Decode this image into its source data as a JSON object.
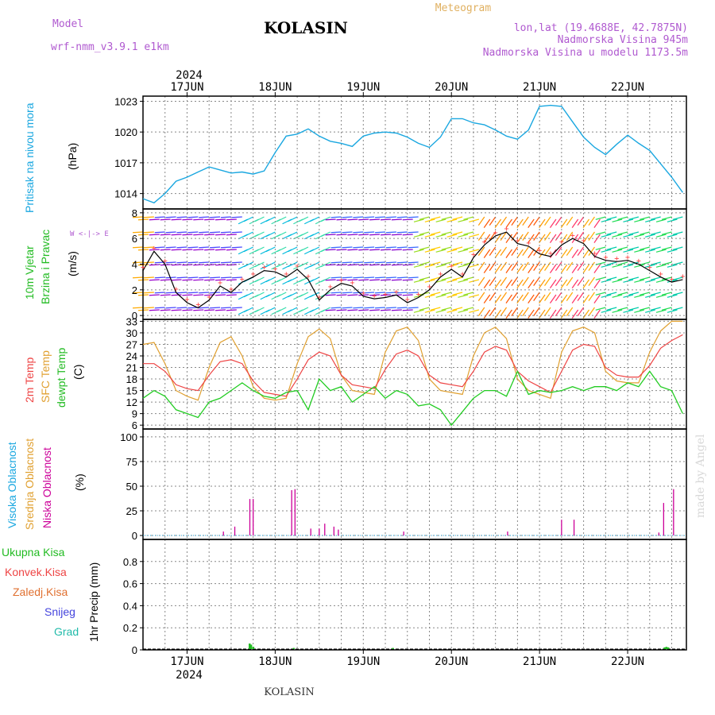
{
  "header": {
    "model_label": "Model",
    "model_name": "wrf-nmm_v3.9.1 e1km",
    "title": "KOLASIN",
    "meteogram_label": "Meteogram",
    "coords": "lon,lat (19.4688E, 42.7875N)",
    "altitude": "Nadmorska Visina 945m",
    "model_altitude": "Nadmorska Visina u modelu 1173.5m",
    "year_top": "2024",
    "year_bottom": "2024",
    "footer": "KOLASIN",
    "watermark": "made by Angel"
  },
  "colors": {
    "pressure": "#1aa7e0",
    "wind_speed": "#000000",
    "wind_gust": "#ff4444",
    "t2m": "#ee4444",
    "sfc": "#e0a030",
    "dewpt": "#22cc22",
    "high_cloud": "#1aa7e0",
    "mid_cloud": "#e0a030",
    "low_cloud": "#cc0099",
    "precip": "#22bb22"
  },
  "chart_data": [
    {
      "type": "line",
      "name": "pressure",
      "ylabel_main": "Pritisak na nivou mora",
      "unit": "(hPa)",
      "ylim": [
        1012.5,
        1023.5
      ],
      "yticks": [
        1014,
        1017,
        1020,
        1023
      ],
      "dates": [
        "17JUN",
        "18JUN",
        "19JUN",
        "20JUN",
        "21JUN",
        "22JUN"
      ],
      "series": [
        {
          "x": [
            0,
            3,
            6,
            9,
            12,
            15,
            18,
            21,
            24,
            27,
            30,
            33,
            36,
            39,
            42,
            45,
            48,
            51,
            54,
            57,
            60,
            63,
            66,
            69,
            72,
            75,
            78,
            81,
            84,
            87,
            90,
            93,
            96,
            99,
            102,
            105,
            108,
            111,
            114,
            117,
            120,
            123,
            126,
            129,
            132,
            135,
            138,
            141,
            144,
            147
          ],
          "values": [
            1013.5,
            1013.1,
            1014.0,
            1015.2,
            1015.6,
            1016.1,
            1016.6,
            1016.3,
            1016.0,
            1016.1,
            1015.9,
            1016.2,
            1018.0,
            1019.6,
            1019.8,
            1020.3,
            1019.6,
            1019.1,
            1018.9,
            1018.6,
            1019.6,
            1019.9,
            1020.0,
            1019.9,
            1019.5,
            1018.9,
            1018.5,
            1019.5,
            1021.3,
            1021.3,
            1020.9,
            1020.7,
            1020.2,
            1019.6,
            1019.3,
            1020.2,
            1022.5,
            1022.6,
            1022.5,
            1021.0,
            1019.5,
            1018.5,
            1017.8,
            1018.8,
            1019.7,
            1018.9,
            1018.2,
            1016.9,
            1015.6,
            1014.1
          ]
        }
      ]
    },
    {
      "type": "line",
      "name": "wind",
      "ylabel_main": "10m Vjetar",
      "ylabel_sub": "Brzina i Pravac",
      "unit": "(m/s)",
      "compass": "W <-|-> E",
      "ylim": [
        -0.3,
        8.3
      ],
      "yticks": [
        0,
        2,
        4,
        6,
        8
      ],
      "series": [
        {
          "name": "speed",
          "x": [
            0,
            3,
            6,
            9,
            12,
            15,
            18,
            21,
            24,
            27,
            30,
            33,
            36,
            39,
            42,
            45,
            48,
            51,
            54,
            57,
            60,
            63,
            66,
            69,
            72,
            75,
            78,
            81,
            84,
            87,
            90,
            93,
            96,
            99,
            102,
            105,
            108,
            111,
            114,
            117,
            120,
            123,
            126,
            129,
            132,
            135,
            138,
            141,
            144,
            147
          ],
          "values": [
            3.5,
            5.0,
            4.0,
            1.8,
            1.0,
            0.6,
            1.2,
            2.3,
            1.8,
            2.6,
            3.0,
            3.5,
            3.4,
            3.0,
            3.6,
            2.8,
            1.2,
            2.0,
            2.5,
            2.3,
            1.5,
            1.3,
            1.4,
            1.6,
            1.0,
            1.4,
            2.0,
            3.0,
            3.6,
            3.0,
            4.5,
            5.5,
            6.2,
            6.5,
            5.6,
            5.4,
            4.8,
            4.6,
            5.5,
            6.0,
            5.6,
            4.6,
            4.3,
            4.2,
            4.3,
            4.0,
            3.5,
            3.0,
            2.6,
            2.8
          ]
        }
      ]
    },
    {
      "type": "line",
      "name": "temperature",
      "legend": [
        "2m Temp",
        "SFC Temp",
        "dewpt Temp"
      ],
      "unit": "(C)",
      "ylim": [
        5,
        33.5
      ],
      "yticks": [
        6,
        9,
        12,
        15,
        18,
        21,
        24,
        27,
        30,
        33
      ],
      "series": [
        {
          "name": "2m Temp",
          "x": [
            0,
            3,
            6,
            9,
            12,
            15,
            18,
            21,
            24,
            27,
            30,
            33,
            36,
            39,
            42,
            45,
            48,
            51,
            54,
            57,
            60,
            63,
            66,
            69,
            72,
            75,
            78,
            81,
            84,
            87,
            90,
            93,
            96,
            99,
            102,
            105,
            108,
            111,
            114,
            117,
            120,
            123,
            126,
            129,
            132,
            135,
            138,
            141,
            144,
            147
          ],
          "values": [
            22,
            22,
            20,
            16.5,
            15.5,
            15,
            19,
            22.5,
            23,
            22,
            17.5,
            14.5,
            14,
            13.5,
            18,
            23,
            25,
            24,
            19,
            16.5,
            16,
            15.5,
            20.5,
            24.5,
            25.5,
            24,
            19,
            17,
            16.5,
            16,
            20,
            25,
            26.5,
            25.5,
            20,
            17.5,
            16,
            14.5,
            20,
            25.5,
            27,
            26.5,
            21,
            19,
            18.5,
            18.5,
            21.5,
            26,
            28,
            29.5
          ]
        },
        {
          "name": "SFC Temp",
          "x": [
            0,
            3,
            6,
            9,
            12,
            15,
            18,
            21,
            24,
            27,
            30,
            33,
            36,
            39,
            42,
            45,
            48,
            51,
            54,
            57,
            60,
            63,
            66,
            69,
            72,
            75,
            78,
            81,
            84,
            87,
            90,
            93,
            96,
            99,
            102,
            105,
            108,
            111,
            114,
            117,
            120,
            123,
            126,
            129,
            132,
            135,
            138,
            141,
            144,
            147
          ],
          "values": [
            27,
            27.5,
            22,
            15,
            13.5,
            12.5,
            21,
            27.5,
            29,
            24,
            16,
            13,
            12.5,
            13,
            22,
            29,
            31,
            28.5,
            19,
            15,
            14.5,
            14,
            25,
            30.5,
            31.5,
            28,
            18,
            15,
            14.5,
            14,
            24,
            30,
            31.5,
            28.5,
            18,
            15,
            14,
            13,
            25,
            30.5,
            31.5,
            30,
            20,
            17.5,
            17,
            17,
            25,
            30.5,
            33,
            33
          ]
        },
        {
          "name": "dewpt Temp",
          "x": [
            0,
            3,
            6,
            9,
            12,
            15,
            18,
            21,
            24,
            27,
            30,
            33,
            36,
            39,
            42,
            45,
            48,
            51,
            54,
            57,
            60,
            63,
            66,
            69,
            72,
            75,
            78,
            81,
            84,
            87,
            90,
            93,
            96,
            99,
            102,
            105,
            108,
            111,
            114,
            117,
            120,
            123,
            126,
            129,
            132,
            135,
            138,
            141,
            144,
            147
          ],
          "values": [
            13,
            15,
            13.5,
            10,
            9,
            8,
            12,
            13,
            15,
            17,
            15,
            13.5,
            13,
            14.5,
            15,
            10,
            18,
            15,
            16,
            12,
            14,
            16,
            13,
            15,
            14,
            11,
            11.5,
            10,
            6,
            9.5,
            13,
            15,
            15,
            13.5,
            20,
            14,
            15,
            14.5,
            15,
            16,
            15,
            16,
            16,
            15,
            17,
            16,
            20,
            16,
            15,
            9
          ]
        }
      ]
    },
    {
      "type": "bar",
      "name": "cloud",
      "legend": [
        "Visoka Oblacnost",
        "Srednja Oblacnost",
        "Niska Oblacnost"
      ],
      "unit": "(%)",
      "ylim": [
        -4,
        108
      ],
      "yticks": [
        0,
        25,
        50,
        75,
        100
      ],
      "series": [
        {
          "name": "Niska Oblacnost",
          "x": [
            21.9,
            25,
            29.1,
            30,
            40.5,
            41.4,
            45.7,
            48,
            49.5,
            52,
            53.2,
            71,
            99.3,
            114,
            117.4,
            140.5,
            141.8,
            144.5
          ],
          "values": [
            4,
            9,
            37,
            37,
            46,
            47,
            7,
            7,
            12,
            9,
            6,
            4,
            4,
            16,
            16,
            3,
            33,
            47
          ]
        }
      ]
    },
    {
      "type": "bar",
      "name": "precip",
      "legend": [
        "Ukupna Kisa",
        "Konvek.Kisa",
        "Zaledj.Kisa",
        "Snijeg",
        "Grad"
      ],
      "ylabel_main": "1hr Precip (mm)",
      "ylim": [
        0,
        1.0
      ],
      "yticks": [
        0,
        0.2,
        0.4,
        0.6,
        0.8
      ],
      "series": [
        {
          "name": "Ukupna Kisa",
          "x": [
            29,
            29.4,
            30,
            41,
            68,
            142,
            142.5,
            143
          ],
          "values": [
            0.05,
            0.04,
            0.02,
            0.01,
            0.01,
            0.015,
            0.02,
            0.015
          ]
        }
      ]
    }
  ]
}
